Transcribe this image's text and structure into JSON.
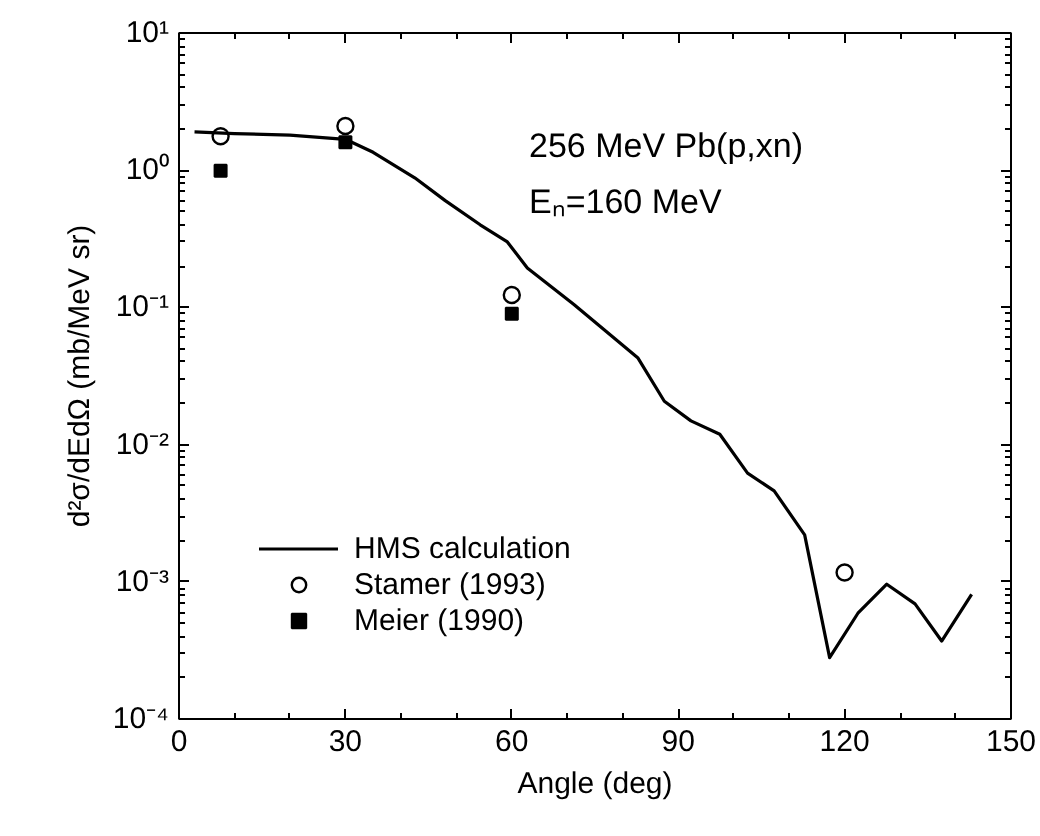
{
  "chart_data": {
    "type": "line",
    "xlabel": "Angle (deg)",
    "ylabel": "d²σ/dEdΩ (mb/MeV sr)",
    "annotations": [
      "256 MeV Pb(p,xn)",
      "Eₙ=160 MeV"
    ],
    "log": "y",
    "grid": false,
    "legend": "bottom left",
    "xlim": [
      0,
      150
    ],
    "xticks": [
      0,
      30,
      60,
      90,
      120,
      150
    ],
    "ylim": [
      0.0001,
      10
    ],
    "yticks": [
      {
        "value": 0.0001,
        "label": "10⁻⁴"
      },
      {
        "value": 0.001,
        "label": "10⁻³"
      },
      {
        "value": 0.01,
        "label": "10⁻²"
      },
      {
        "value": 0.1,
        "label": "10⁻¹"
      },
      {
        "value": 1,
        "label": "10⁰"
      },
      {
        "value": 10,
        "label": "10¹"
      }
    ],
    "series": [
      {
        "name": "HMS calculation",
        "color": "#000000",
        "line_style": "solid",
        "marker": "none",
        "x": [
          2.8,
          10,
          20,
          30,
          35,
          42.5,
          48,
          54.3,
          59.2,
          62.8,
          71.2,
          82.7,
          87.5,
          92.3,
          97.5,
          102.5,
          107.3,
          112.8,
          117.3,
          122.4,
          127.6,
          132.7,
          137.5,
          142.9
        ],
        "values": [
          1.9,
          1.85,
          1.8,
          1.68,
          1.35,
          0.88,
          0.6,
          0.4,
          0.3,
          0.194,
          0.105,
          0.043,
          0.0207,
          0.0149,
          0.0119,
          0.0062,
          0.0046,
          0.0022,
          0.00028,
          0.00059,
          0.00096,
          0.00069,
          0.00037,
          0.00081
        ]
      },
      {
        "name": "Stamer (1993)",
        "type": "scatter",
        "color": "#000000",
        "marker": "circle",
        "x": [
          7.5,
          30,
          60,
          120
        ],
        "values": [
          1.77,
          2.1,
          0.123,
          0.00117
        ]
      },
      {
        "name": "Meier (1990)",
        "type": "scatter",
        "color": "#000000",
        "marker": "square",
        "x": [
          7.5,
          30,
          60
        ],
        "values": [
          0.99,
          1.6,
          0.09
        ]
      }
    ]
  }
}
